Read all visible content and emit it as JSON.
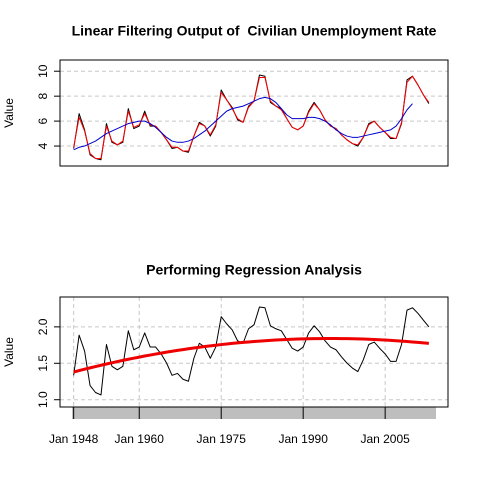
{
  "chart_data": [
    {
      "type": "line",
      "title": "Linear Filtering Output of  Civilian Unemployment Rate",
      "y_label": "Value",
      "x": [
        1948,
        1949,
        1950,
        1951,
        1952,
        1953,
        1954,
        1955,
        1956,
        1957,
        1958,
        1959,
        1960,
        1961,
        1962,
        1963,
        1964,
        1965,
        1966,
        1967,
        1968,
        1969,
        1970,
        1971,
        1972,
        1973,
        1974,
        1975,
        1976,
        1977,
        1978,
        1979,
        1980,
        1981,
        1982,
        1983,
        1984,
        1985,
        1986,
        1987,
        1988,
        1989,
        1990,
        1991,
        1992,
        1993,
        1994,
        1995,
        1996,
        1997,
        1998,
        1999,
        2000,
        2001,
        2002,
        2003,
        2004,
        2005,
        2006,
        2007,
        2008,
        2009,
        2010,
        2011,
        2012,
        2013
      ],
      "series": [
        {
          "color": "#000000",
          "line_width": 1,
          "values": [
            3.8,
            6.6,
            5.3,
            3.3,
            3.0,
            2.9,
            5.8,
            4.3,
            4.1,
            4.3,
            7.0,
            5.4,
            5.6,
            6.8,
            5.6,
            5.6,
            5.1,
            4.5,
            3.8,
            3.9,
            3.6,
            3.5,
            4.8,
            5.9,
            5.6,
            4.8,
            5.6,
            8.5,
            7.7,
            7.1,
            6.1,
            5.9,
            7.2,
            7.6,
            9.7,
            9.6,
            7.5,
            7.2,
            7.0,
            6.2,
            5.5,
            5.3,
            5.6,
            6.8,
            7.5,
            6.9,
            6.1,
            5.6,
            5.4,
            4.9,
            4.5,
            4.2,
            4.0,
            4.7,
            5.8,
            6.0,
            5.5,
            5.1,
            4.6,
            4.6,
            5.8,
            9.3,
            9.6,
            8.9,
            8.1,
            7.4
          ]
        },
        {
          "color": "#ff0000",
          "line_width": 1,
          "values": [
            3.9,
            6.3,
            5.2,
            3.4,
            3.0,
            3.0,
            5.6,
            4.4,
            4.1,
            4.4,
            6.8,
            5.5,
            5.7,
            6.6,
            5.7,
            5.6,
            5.1,
            4.5,
            3.9,
            3.9,
            3.6,
            3.6,
            4.8,
            5.8,
            5.6,
            4.9,
            5.7,
            8.3,
            7.7,
            7.0,
            6.2,
            5.9,
            7.1,
            7.6,
            9.5,
            9.5,
            7.6,
            7.2,
            6.9,
            6.2,
            5.5,
            5.3,
            5.6,
            6.7,
            7.4,
            6.9,
            6.1,
            5.6,
            5.4,
            4.9,
            4.5,
            4.2,
            4.1,
            4.7,
            5.7,
            6.0,
            5.5,
            5.1,
            4.7,
            4.6,
            5.9,
            9.1,
            9.6,
            8.9,
            8.1,
            7.5
          ]
        },
        {
          "color": "#0000cc",
          "line_width": 1,
          "values": [
            3.7,
            3.9,
            4.0,
            4.2,
            4.4,
            4.7,
            5.0,
            5.2,
            5.4,
            5.6,
            5.8,
            5.9,
            6.0,
            6.0,
            5.8,
            5.5,
            5.1,
            4.7,
            4.4,
            4.3,
            4.3,
            4.4,
            4.6,
            4.9,
            5.2,
            5.6,
            6.0,
            6.4,
            6.8,
            7.0,
            7.1,
            7.2,
            7.4,
            7.6,
            7.8,
            7.9,
            7.8,
            7.5,
            7.0,
            6.5,
            6.2,
            6.2,
            6.2,
            6.3,
            6.3,
            6.2,
            6.0,
            5.7,
            5.3,
            5.0,
            4.8,
            4.7,
            4.7,
            4.8,
            4.9,
            5.0,
            5.1,
            5.2,
            5.3,
            5.6,
            6.2,
            6.9,
            7.4,
            null,
            null,
            null
          ]
        }
      ],
      "xlim": [
        1945.5,
        2016.5
      ],
      "ylim": [
        2.4,
        10.9
      ],
      "yticks": [
        4,
        6,
        8,
        10
      ],
      "grid": true
    },
    {
      "type": "line",
      "title": "Performing Regression Analysis",
      "y_label": "Value",
      "x": [
        1948,
        1949,
        1950,
        1951,
        1952,
        1953,
        1954,
        1955,
        1956,
        1957,
        1958,
        1959,
        1960,
        1961,
        1962,
        1963,
        1964,
        1965,
        1966,
        1967,
        1968,
        1969,
        1970,
        1971,
        1972,
        1973,
        1974,
        1975,
        1976,
        1977,
        1978,
        1979,
        1980,
        1981,
        1982,
        1983,
        1984,
        1985,
        1986,
        1987,
        1988,
        1989,
        1990,
        1991,
        1992,
        1993,
        1994,
        1995,
        1996,
        1997,
        1998,
        1999,
        2000,
        2001,
        2002,
        2003,
        2004,
        2005,
        2006,
        2007,
        2008,
        2009,
        2010,
        2011,
        2012,
        2013
      ],
      "series": [
        {
          "color": "#000000",
          "line_width": 1,
          "values": [
            1.335,
            1.887,
            1.668,
            1.194,
            1.099,
            1.065,
            1.758,
            1.459,
            1.411,
            1.459,
            1.946,
            1.686,
            1.723,
            1.917,
            1.723,
            1.723,
            1.629,
            1.504,
            1.335,
            1.361,
            1.281,
            1.253,
            1.569,
            1.775,
            1.723,
            1.569,
            1.723,
            2.14,
            2.041,
            1.96,
            1.808,
            1.775,
            1.974,
            2.028,
            2.272,
            2.262,
            2.015,
            1.974,
            1.946,
            1.825,
            1.705,
            1.668,
            1.723,
            1.917,
            2.015,
            1.932,
            1.808,
            1.723,
            1.686,
            1.589,
            1.504,
            1.435,
            1.386,
            1.548,
            1.758,
            1.792,
            1.705,
            1.629,
            1.526,
            1.526,
            1.758,
            2.23,
            2.262,
            2.186,
            2.092,
            2.001
          ]
        },
        {
          "color": "#ee0000",
          "line_width": 3,
          "values": [
            1.38,
            1.4,
            1.419,
            1.437,
            1.455,
            1.473,
            1.49,
            1.507,
            1.524,
            1.54,
            1.555,
            1.57,
            1.585,
            1.6,
            1.613,
            1.627,
            1.64,
            1.653,
            1.665,
            1.677,
            1.688,
            1.699,
            1.71,
            1.72,
            1.73,
            1.739,
            1.748,
            1.757,
            1.765,
            1.773,
            1.78,
            1.787,
            1.793,
            1.799,
            1.805,
            1.81,
            1.815,
            1.819,
            1.823,
            1.827,
            1.83,
            1.833,
            1.835,
            1.837,
            1.838,
            1.839,
            1.84,
            1.84,
            1.84,
            1.839,
            1.838,
            1.837,
            1.835,
            1.833,
            1.83,
            1.827,
            1.823,
            1.819,
            1.815,
            1.81,
            1.805,
            1.799,
            1.793,
            1.787,
            1.78,
            1.773
          ]
        }
      ],
      "xlim": [
        1945.5,
        2016.5
      ],
      "ylim": [
        0.9,
        2.41
      ],
      "xticks": [
        {
          "value": 1948,
          "label": "Jan 1948"
        },
        {
          "value": 1960,
          "label": "Jan 1960"
        },
        {
          "value": 1975,
          "label": "Jan 1975"
        },
        {
          "value": 1990,
          "label": "Jan 1990"
        },
        {
          "value": 2005,
          "label": "Jan 2005"
        }
      ],
      "yticks": [
        {
          "value": 1,
          "label": "1.0"
        },
        1.5,
        {
          "value": 2,
          "label": "2.0"
        }
      ],
      "grid": true
    }
  ]
}
